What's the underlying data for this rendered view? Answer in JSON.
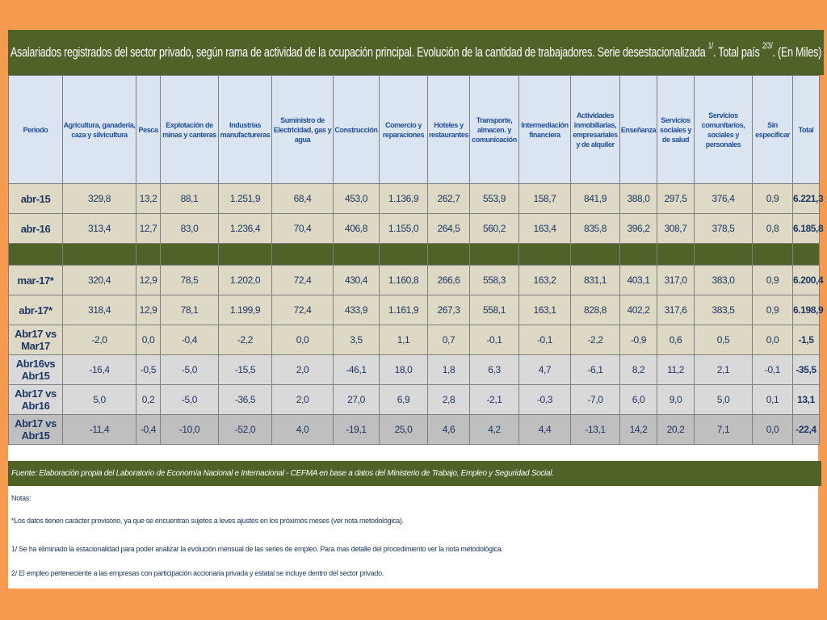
{
  "title": {
    "text": "Asalariados registrados del sector privado, según rama de actividad de la ocupación principal. Evolución de la cantidad de trabajadores. Serie desestacionalizada",
    "sup1": "1/",
    "mid": ". Total país",
    "sup2": "2/3/",
    "end": ". (En Miles)"
  },
  "columns": [
    "Periodo",
    "Agricultura, ganadería, caza y silvicultura",
    "Pesca",
    "Explotación de minas y canteras",
    "Industrias manufactureras",
    "Suministro de Electricidad, gas y agua",
    "Construcción",
    "Comercio y reparaciones",
    "Hoteles y restaurantes",
    "Transporte, almacen. y comunicación",
    "Intermediación financiera",
    "Actividades inmobiliarias, empresariales y de alquiler",
    "Enseñanza",
    "Servicios sociales y de salud",
    "Servicios comunitarios, sociales y personales",
    "Sin especificar",
    "Total"
  ],
  "rows": [
    {
      "style": "tan",
      "cells": [
        "abr-15",
        "329,8",
        "13,2",
        "88,1",
        "1.251,9",
        "68,4",
        "453,0",
        "1.136,9",
        "262,7",
        "553,9",
        "158,7",
        "841,9",
        "388,0",
        "297,5",
        "376,4",
        "0,9",
        "6.221,3"
      ]
    },
    {
      "style": "tan",
      "cells": [
        "abr-16",
        "313,4",
        "12,7",
        "83,0",
        "1.236,4",
        "70,4",
        "406,8",
        "1.155,0",
        "264,5",
        "560,2",
        "163,4",
        "835,8",
        "396,2",
        "308,7",
        "378,5",
        "0,8",
        "6.185,8"
      ]
    },
    {
      "style": "olive",
      "cells": [
        "",
        "",
        "",
        "",
        "",
        "",
        "",
        "",
        "",
        "",
        "",
        "",
        "",
        "",
        "",
        "",
        ""
      ]
    },
    {
      "style": "tan",
      "cells": [
        "mar-17*",
        "320,4",
        "12,9",
        "78,5",
        "1.202,0",
        "72,4",
        "430,4",
        "1.160,8",
        "266,6",
        "558,3",
        "163,2",
        "831,1",
        "403,1",
        "317,0",
        "383,0",
        "0,9",
        "6.200,4"
      ]
    },
    {
      "style": "tan",
      "cells": [
        "abr-17*",
        "318,4",
        "12,9",
        "78,1",
        "1.199,9",
        "72,4",
        "433,9",
        "1.161,9",
        "267,3",
        "558,1",
        "163,1",
        "828,8",
        "402,2",
        "317,6",
        "383,5",
        "0,9",
        "6.198,9"
      ]
    },
    {
      "style": "tan",
      "cells": [
        "Abr17 vs Mar17",
        "-2,0",
        "0,0",
        "-0,4",
        "-2,2",
        "0,0",
        "3,5",
        "1,1",
        "0,7",
        "-0,1",
        "-0,1",
        "-2,2",
        "-0,9",
        "0,6",
        "0,5",
        "0,0",
        "-1,5"
      ]
    },
    {
      "style": "grey1",
      "cells": [
        "Abr16vs Abr15",
        "-16,4",
        "-0,5",
        "-5,0",
        "-15,5",
        "2,0",
        "-46,1",
        "18,0",
        "1,8",
        "6,3",
        "4,7",
        "-6,1",
        "8,2",
        "11,2",
        "2,1",
        "-0,1",
        "-35,5"
      ]
    },
    {
      "style": "grey1",
      "cells": [
        "Abr17 vs Abr16",
        "5,0",
        "0,2",
        "-5,0",
        "-36,5",
        "2,0",
        "27,0",
        "6,9",
        "2,8",
        "-2,1",
        "-0,3",
        "-7,0",
        "6,0",
        "9,0",
        "5,0",
        "0,1",
        "13,1"
      ]
    },
    {
      "style": "grey2",
      "cells": [
        "Abr17 vs Abr15",
        "-11,4",
        "-0,4",
        "-10,0",
        "-52,0",
        "4,0",
        "-19,1",
        "25,0",
        "4,6",
        "4,2",
        "4,4",
        "-13,1",
        "14,2",
        "20,2",
        "7,1",
        "0,0",
        "-22,4"
      ]
    }
  ],
  "source": "Fuente: Elaboración propia del Laboratorio de Economía Nacional e Internacional - CEFMA en base a datos del Ministerio de Trabajo, Empleo y Seguridad Social.",
  "notes": {
    "heading": "Notas:",
    "lines": [
      "*Los datos tienen carácter provisorio, ya que se encuentran sujetos a leves ajustes en los próximos meses (ver nota metodológica).",
      "1/ Se ha eliminado la estacionalidad para poder analizar la evolución mensual de las series de empleo. Para mas detalle del procedimiento ver la nota metodológica.",
      "2/ El empleo perteneciente a las empresas con participación accionaria privada y estatal se incluye dentro del sector privado."
    ]
  },
  "colors": {
    "background": "#f59a4e",
    "olive": "#4f6228",
    "tan": "#ddd9c4",
    "grey": "#d9d9d9",
    "darkgrey": "#bfbfbf",
    "header": "#dbe5f1"
  }
}
